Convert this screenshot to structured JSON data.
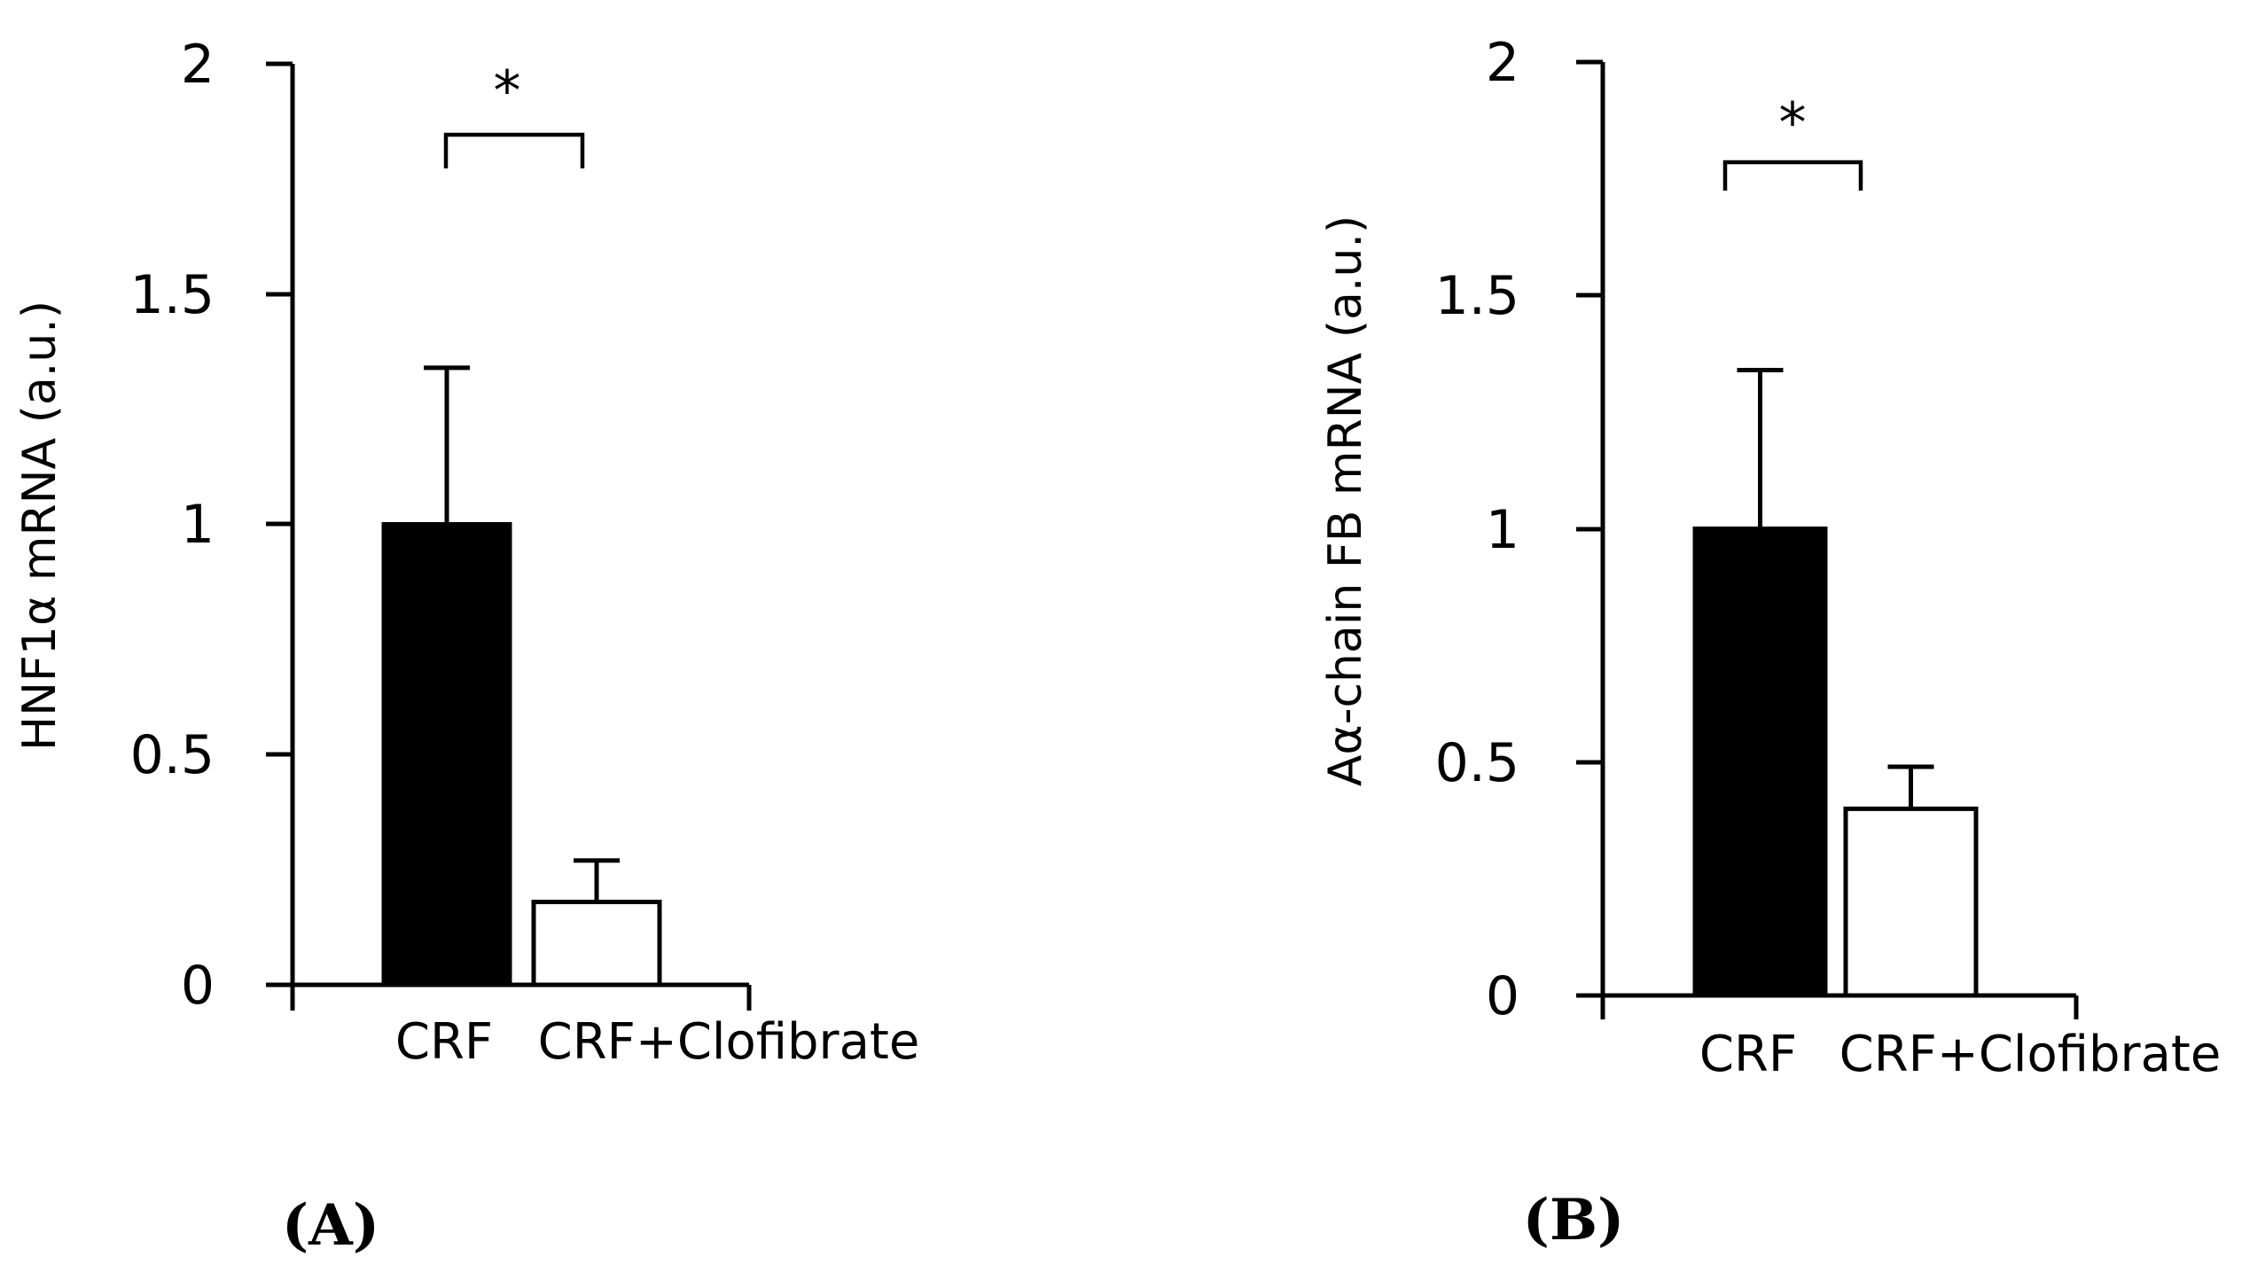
{
  "chart_data": [
    {
      "type": "bar",
      "panel": "A",
      "panel_label": "(A)",
      "ylabel": "HNF1α mRNA (a.u.)",
      "xlabel": "",
      "ylim": [
        0,
        2
      ],
      "ytick_labels": [
        "0",
        "0.5",
        "1",
        "1.5",
        "2"
      ],
      "categories": [
        "CRF",
        "CRF+Clofibrate"
      ],
      "values": [
        1.0,
        0.18
      ],
      "errors": [
        0.34,
        0.09
      ],
      "bar_colors": [
        "#000000",
        "#ffffff"
      ],
      "significance": {
        "label": "*",
        "between": [
          "CRF",
          "CRF+Clofibrate"
        ]
      }
    },
    {
      "type": "bar",
      "panel": "B",
      "panel_label": "(B)",
      "ylabel": "Aα-chain FB mRNA (a.u.)",
      "xlabel": "",
      "ylim": [
        0,
        2
      ],
      "ytick_labels": [
        "0",
        "0.5",
        "1",
        "1.5",
        "2"
      ],
      "categories": [
        "CRF",
        "CRF+Clofibrate"
      ],
      "values": [
        1.0,
        0.4
      ],
      "errors": [
        0.34,
        0.09
      ],
      "bar_colors": [
        "#000000",
        "#ffffff"
      ],
      "significance": {
        "label": "*",
        "between": [
          "CRF",
          "CRF+Clofibrate"
        ]
      }
    }
  ]
}
